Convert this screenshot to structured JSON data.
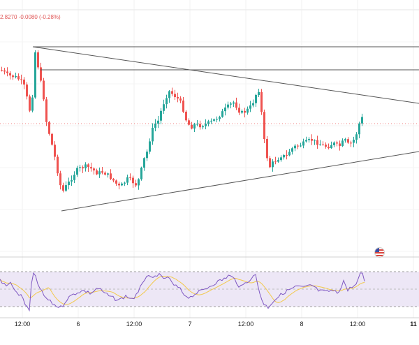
{
  "header": {
    "change_text": "2.8270  -0.0080 (-0.28%)"
  },
  "time_axis": {
    "ticks": [
      {
        "label": "12:00",
        "bold": false
      },
      {
        "label": "6",
        "bold": false
      },
      {
        "label": "12:00",
        "bold": false
      },
      {
        "label": "7",
        "bold": false
      },
      {
        "label": "12:00",
        "bold": false
      },
      {
        "label": "8",
        "bold": false
      },
      {
        "label": "12:00",
        "bold": false
      },
      {
        "label": "11",
        "bold": true
      }
    ]
  },
  "colors": {
    "up": "#26a69a",
    "down": "#ef5350",
    "trendline": "#555555",
    "price_line": "#f08080",
    "rsi_line": "#7e57c2",
    "rsi_ma": "#f2c94c",
    "rsi_band": "#ede7f6"
  },
  "icons": {
    "event_flag": "us-flag-icon"
  },
  "chart_data": {
    "type": "candlestick",
    "sections": [
      "price",
      "rsi"
    ],
    "trendlines": 4,
    "rsi_band": [
      30,
      70
    ]
  }
}
